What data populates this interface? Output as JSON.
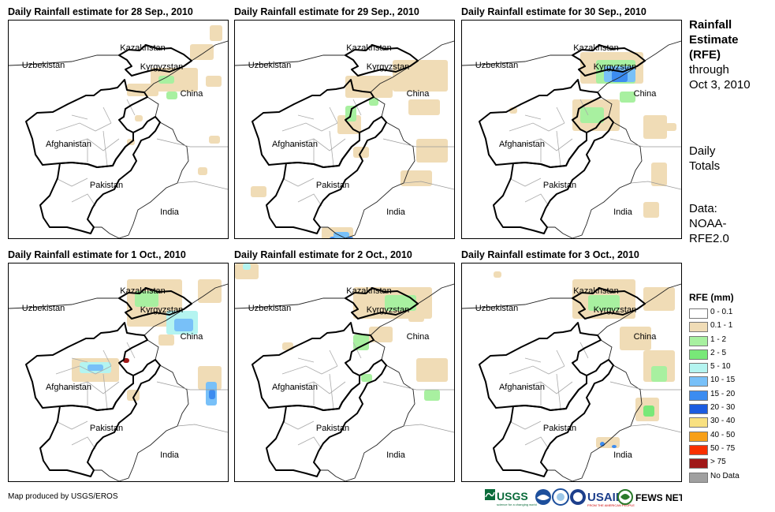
{
  "panels": [
    {
      "title": "Daily Rainfall estimate for 28 Sep., 2010"
    },
    {
      "title": "Daily Rainfall estimate for 29 Sep., 2010"
    },
    {
      "title": "Daily Rainfall estimate for 30 Sep., 2010"
    },
    {
      "title": "Daily Rainfall estimate for 1 Oct., 2010"
    },
    {
      "title": "Daily Rainfall estimate for 2 Oct., 2010"
    },
    {
      "title": "Daily Rainfall estimate for 3 Oct., 2010"
    }
  ],
  "map_labels": {
    "kazakhstan": "Kazakhstan",
    "uzbekistan": "Uzbekistan",
    "kyrgyzstan": "Kyrgyzstan",
    "china": "China",
    "afghanistan": "Afghanistan",
    "pakistan": "Pakistan",
    "india": "India"
  },
  "side": {
    "title_l1": "Rainfall",
    "title_l2": "Estimate",
    "title_l3": "(RFE)",
    "through": "through",
    "date": "Oct 3, 2010",
    "daily_l1": "Daily",
    "daily_l2": "Totals",
    "data_l1": "Data:",
    "data_l2": "NOAA-",
    "data_l3": "RFE2.0"
  },
  "legend": {
    "title": "RFE (mm)",
    "items": [
      {
        "label": "0 - 0.1",
        "color": "#ffffff"
      },
      {
        "label": "0.1 - 1",
        "color": "#f0dcb6"
      },
      {
        "label": "1 - 2",
        "color": "#a8f0a0"
      },
      {
        "label": "2 - 5",
        "color": "#78e878"
      },
      {
        "label": "5 - 10",
        "color": "#b4f4f0"
      },
      {
        "label": "10 - 15",
        "color": "#78c0f8"
      },
      {
        "label": "15 - 20",
        "color": "#3c8cf0"
      },
      {
        "label": "20 - 30",
        "color": "#1c5ce0"
      },
      {
        "label": "30 - 40",
        "color": "#f8e080"
      },
      {
        "label": "40 - 50",
        "color": "#f8a018"
      },
      {
        "label": "50 - 75",
        "color": "#f83000"
      },
      {
        "label": "> 75",
        "color": "#a01818"
      },
      {
        "label": "No Data",
        "color": "#a0a0a0"
      }
    ]
  },
  "credit": "Map produced by USGS/EROS",
  "logos": {
    "usgs": "USGS",
    "usgs_tagline": "science for a changing world",
    "usaid": "USAID",
    "usaid_tagline": "FROM THE AMERICAN PEOPLE",
    "fews": "FEWS NET"
  }
}
